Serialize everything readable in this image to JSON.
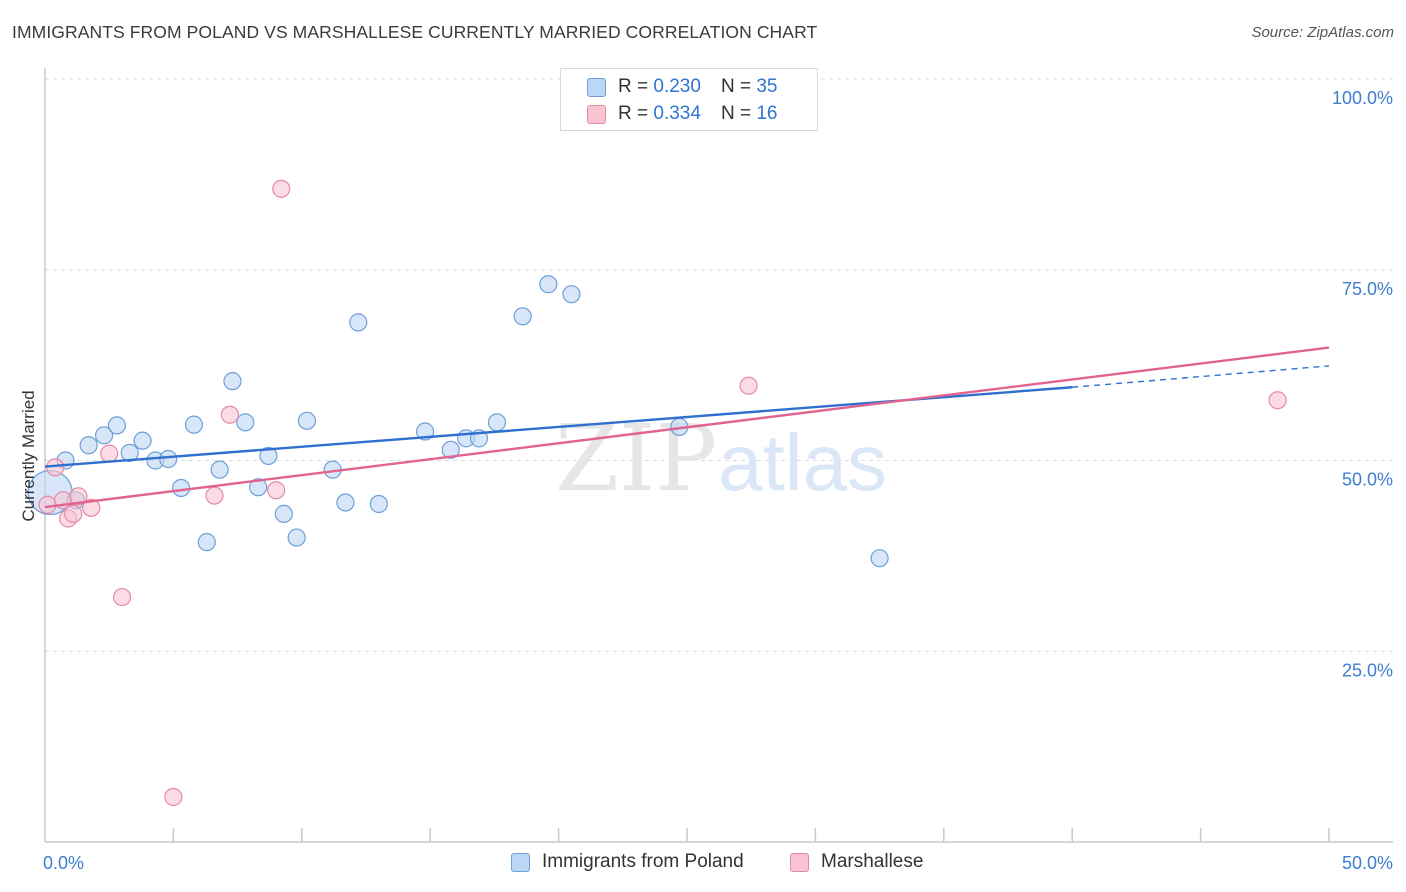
{
  "title": "IMMIGRANTS FROM POLAND VS MARSHALLESE CURRENTLY MARRIED CORRELATION CHART",
  "source": "Source: ZipAtlas.com",
  "watermark": {
    "zip": "ZIP",
    "atlas": "atlas"
  },
  "legend": {
    "rows": [
      {
        "r_label": "R =",
        "r_value": "0.230",
        "n_label": "N =",
        "n_value": "35"
      },
      {
        "r_label": "R =",
        "r_value": "0.334",
        "n_label": "N =",
        "n_value": "16"
      }
    ]
  },
  "colors": {
    "blue_fill": "#bcd6f5",
    "blue_stroke": "#6f9fd8",
    "blue_line": "#2f6fce",
    "pink_fill": "#f9c5d3",
    "pink_stroke": "#e58aa6",
    "pink_line": "#e0648f",
    "grid": "#dcdcdc",
    "axis_label": "#3e7dd0"
  },
  "chart_data": {
    "type": "scatter",
    "title": "IMMIGRANTS FROM POLAND VS MARSHALLESE CURRENTLY MARRIED CORRELATION CHART",
    "xlabel": "",
    "ylabel": "Currently Married",
    "xlim": [
      0,
      50
    ],
    "ylim": [
      0,
      100
    ],
    "x_tick_labels": [
      "0.0%",
      "50.0%"
    ],
    "y_tick_labels": [
      "25.0%",
      "50.0%",
      "75.0%",
      "100.0%"
    ],
    "y_ticks": [
      25,
      50,
      75,
      100
    ],
    "grid": true,
    "series": [
      {
        "name": "Immigrants from Poland",
        "color": "blue",
        "r": 0.23,
        "n": 35,
        "points": [
          [
            0.2,
            45.8
          ],
          [
            0.8,
            50.0
          ],
          [
            1.2,
            44.8
          ],
          [
            1.7,
            52.0
          ],
          [
            2.3,
            53.3
          ],
          [
            2.8,
            54.6
          ],
          [
            3.3,
            51.0
          ],
          [
            3.8,
            52.6
          ],
          [
            4.3,
            50.0
          ],
          [
            4.8,
            50.2
          ],
          [
            5.3,
            46.4
          ],
          [
            5.8,
            54.7
          ],
          [
            6.3,
            39.3
          ],
          [
            6.8,
            48.8
          ],
          [
            7.3,
            60.4
          ],
          [
            7.8,
            55.0
          ],
          [
            8.3,
            46.5
          ],
          [
            8.7,
            50.6
          ],
          [
            9.3,
            43.0
          ],
          [
            9.8,
            39.9
          ],
          [
            10.2,
            55.2
          ],
          [
            11.2,
            48.8
          ],
          [
            11.7,
            44.5
          ],
          [
            12.2,
            68.1
          ],
          [
            13.0,
            44.3
          ],
          [
            14.8,
            53.8
          ],
          [
            15.8,
            51.4
          ],
          [
            16.4,
            52.9
          ],
          [
            16.9,
            52.9
          ],
          [
            17.6,
            55.0
          ],
          [
            18.6,
            68.9
          ],
          [
            19.6,
            73.1
          ],
          [
            20.5,
            71.8
          ],
          [
            24.7,
            54.4
          ],
          [
            32.5,
            37.2
          ]
        ],
        "trend": {
          "x0": 0,
          "y0": 49.2,
          "x1": 40,
          "y1": 59.6,
          "dashed_to": 50,
          "dashed_y": 62.4
        }
      },
      {
        "name": "Marshallese",
        "color": "pink",
        "r": 0.334,
        "n": 16,
        "points": [
          [
            0.1,
            44.2
          ],
          [
            0.4,
            49.1
          ],
          [
            0.7,
            44.8
          ],
          [
            0.9,
            42.4
          ],
          [
            1.1,
            43.0
          ],
          [
            1.3,
            45.3
          ],
          [
            1.8,
            43.8
          ],
          [
            2.5,
            50.9
          ],
          [
            3.0,
            32.1
          ],
          [
            5.0,
            5.9
          ],
          [
            6.6,
            45.4
          ],
          [
            7.2,
            56.0
          ],
          [
            9.0,
            46.1
          ],
          [
            9.2,
            85.6
          ],
          [
            27.4,
            59.8
          ],
          [
            48.0,
            57.9
          ]
        ],
        "trend": {
          "x0": 0,
          "y0": 43.9,
          "x1": 50,
          "y1": 64.8
        }
      }
    ]
  }
}
